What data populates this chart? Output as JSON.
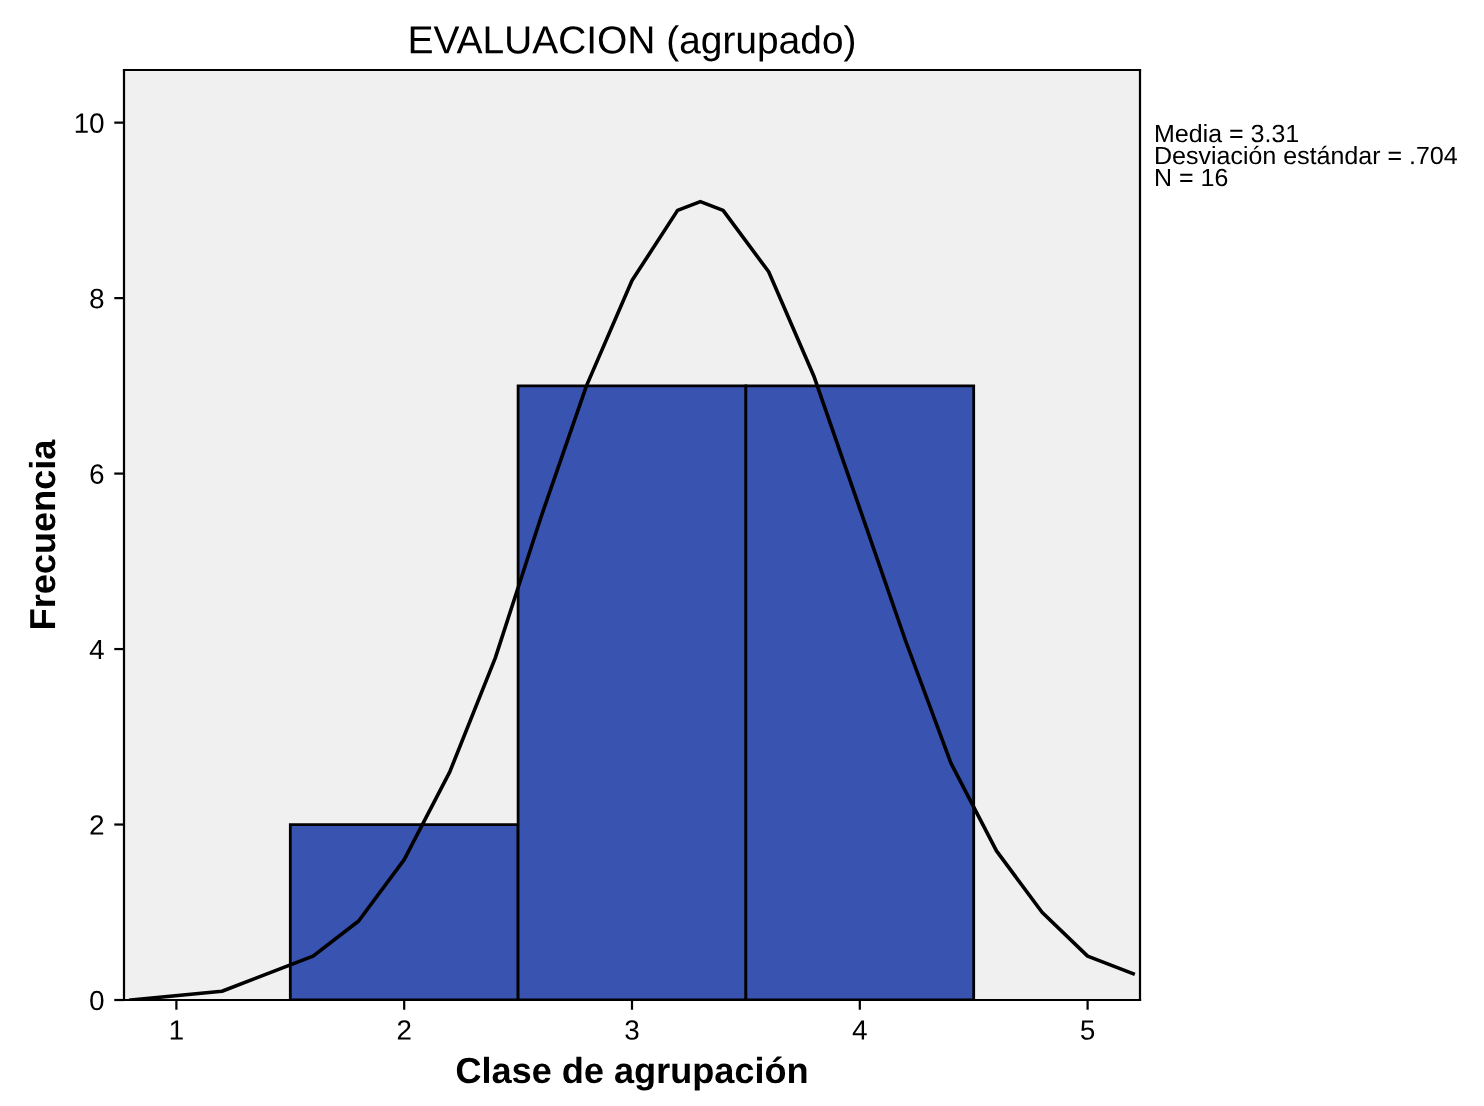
{
  "chart_data": {
    "type": "histogram",
    "title": "EVALUACION (agrupado)",
    "xlabel": "Clase de agrupación",
    "ylabel": "Frecuencia",
    "bins": [
      1.5,
      2.5,
      3.5,
      4.5
    ],
    "values": [
      2,
      7,
      7
    ],
    "color": "#3953b0",
    "series": [
      {
        "type": "line",
        "color": "#000000",
        "x": [
          0.8,
          1.2,
          1.6,
          1.8,
          2.0,
          2.2,
          2.4,
          2.6,
          2.8,
          3.0,
          3.2,
          3.3,
          3.4,
          3.6,
          3.8,
          4.0,
          4.2,
          4.4,
          4.6,
          4.8,
          5.0,
          5.2
        ],
        "values": [
          0.0,
          0.1,
          0.5,
          0.9,
          1.6,
          2.6,
          3.9,
          5.5,
          7.0,
          8.2,
          9.0,
          9.1,
          9.0,
          8.3,
          7.1,
          5.6,
          4.1,
          2.7,
          1.7,
          1.0,
          0.5,
          0.3
        ]
      }
    ],
    "xlim": [
      0.77,
      5.23
    ],
    "ylim": [
      0,
      10.6
    ],
    "xticks": [
      1,
      2,
      3,
      4,
      5
    ],
    "yticks": [
      0,
      2,
      4,
      6,
      8,
      10
    ],
    "annotations": [
      "Media = 3.31",
      "Desviación estándar = .704",
      "N = 16"
    ]
  }
}
